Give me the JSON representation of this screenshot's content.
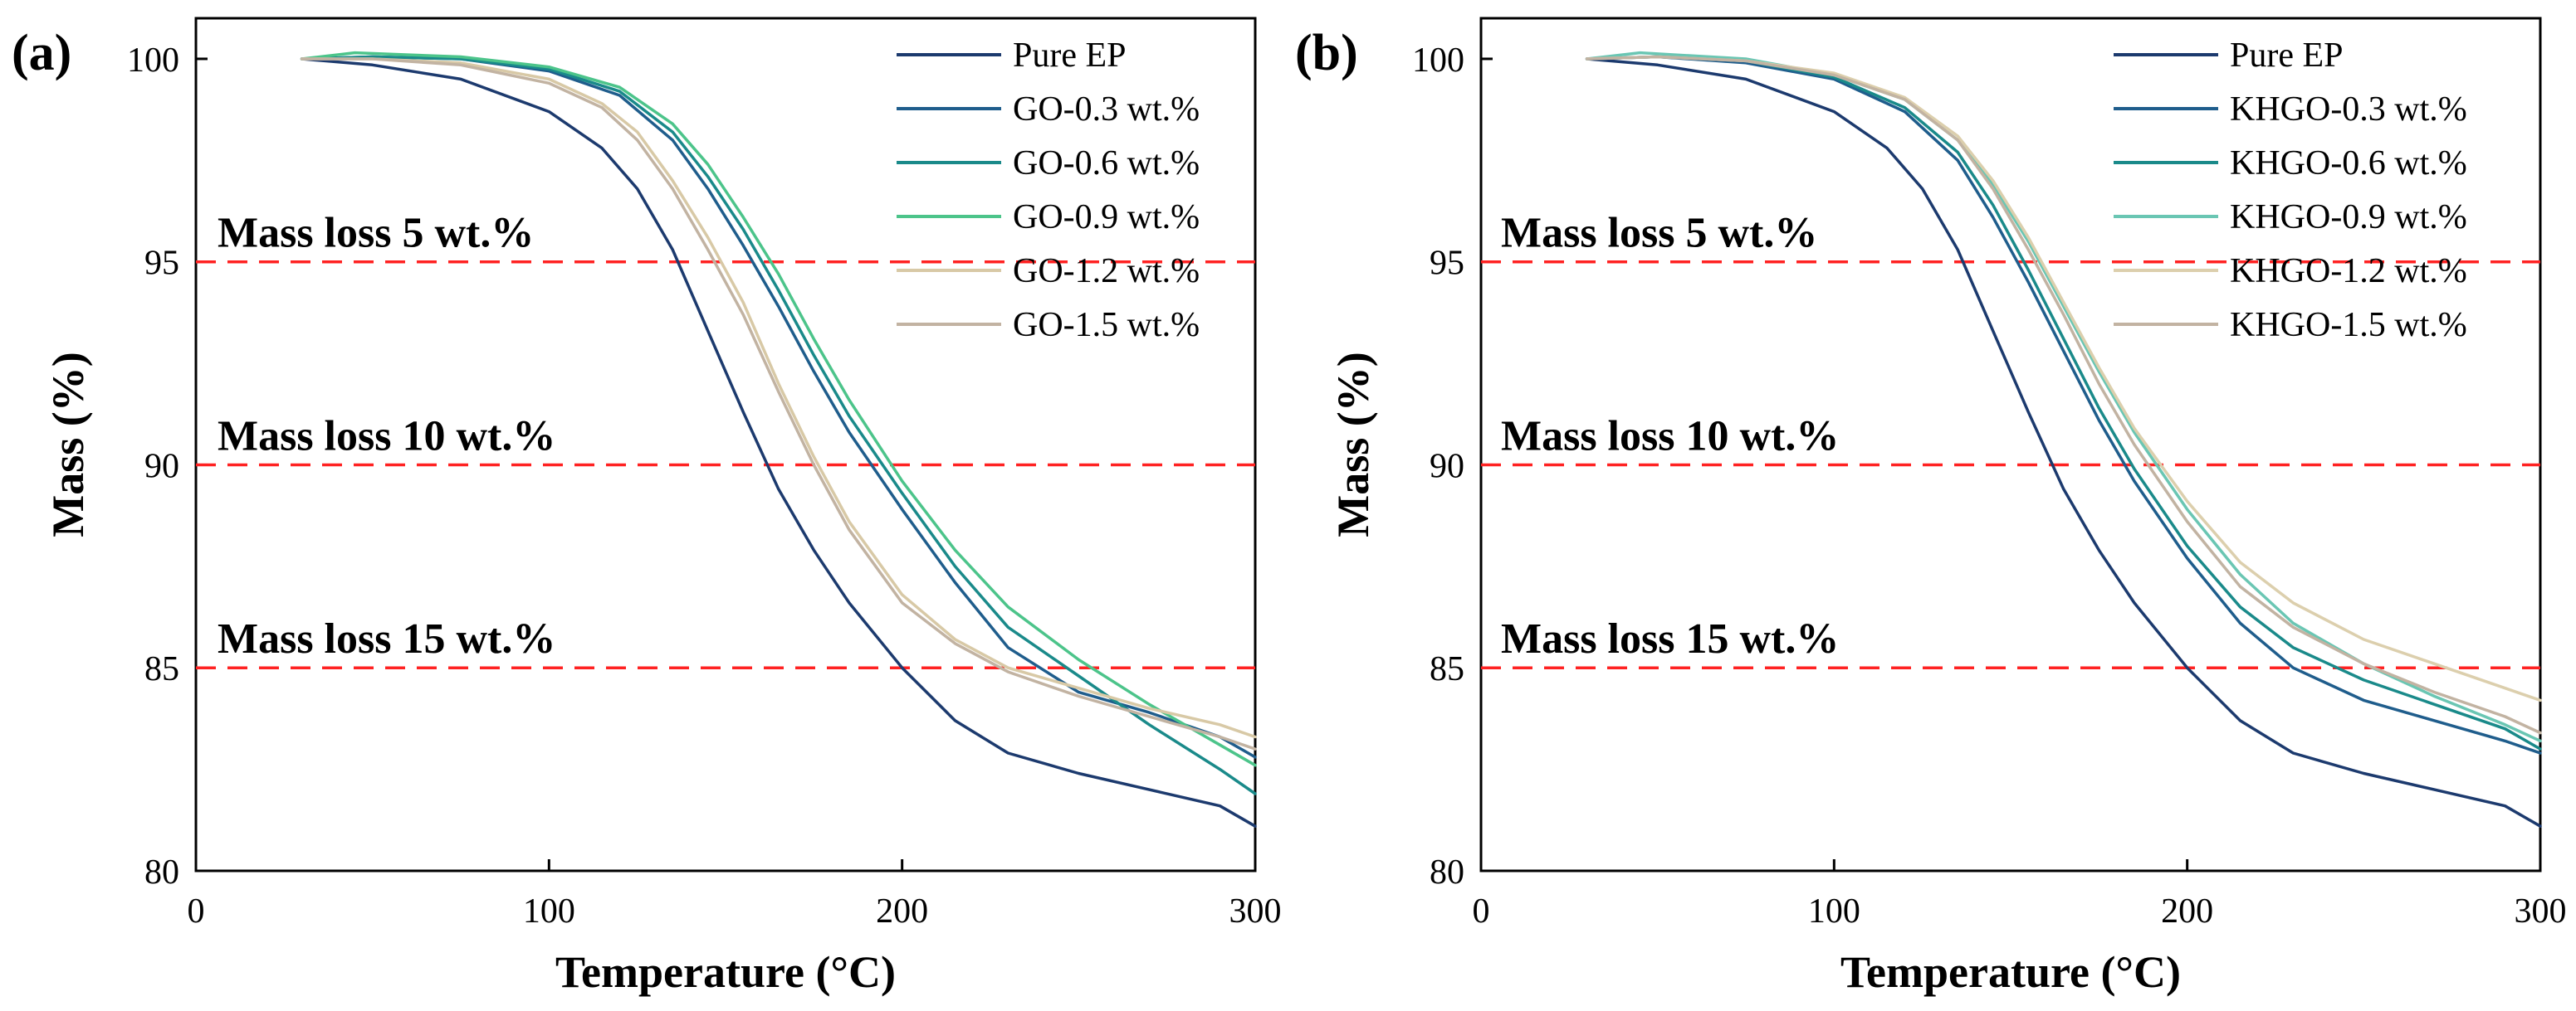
{
  "chart_data": [
    {
      "type": "line",
      "panel_label": "(a)",
      "xlabel": "Temperature (°C)",
      "ylabel": "Mass (%)",
      "xlim": [
        0,
        300
      ],
      "ylim": [
        80,
        101
      ],
      "xticks": [
        0,
        100,
        200,
        300
      ],
      "yticks": [
        80,
        85,
        90,
        95,
        100
      ],
      "legend_position": "top-right",
      "reference_lines": [
        {
          "y": 95,
          "color": "#ff2222",
          "style": "dashed",
          "label": "Mass loss 5 wt.%"
        },
        {
          "y": 90,
          "color": "#ff2222",
          "style": "dashed",
          "label": "Mass loss 10 wt.%"
        },
        {
          "y": 85,
          "color": "#ff2222",
          "style": "dashed",
          "label": "Mass loss 15 wt.%"
        }
      ],
      "series": [
        {
          "name": "Pure EP",
          "color": "#1c3a6e",
          "x": [
            30,
            50,
            75,
            100,
            115,
            125,
            135,
            145,
            155,
            165,
            175,
            185,
            200,
            215,
            230,
            250,
            270,
            290,
            300
          ],
          "y": [
            100.0,
            99.85,
            99.5,
            98.7,
            97.8,
            96.8,
            95.3,
            93.3,
            91.3,
            89.4,
            87.9,
            86.6,
            85.0,
            83.7,
            82.9,
            82.4,
            82.0,
            81.6,
            81.1
          ]
        },
        {
          "name": "GO-0.3 wt.%",
          "color": "#1f5d8c",
          "x": [
            30,
            50,
            75,
            100,
            120,
            135,
            145,
            155,
            165,
            175,
            185,
            200,
            215,
            230,
            250,
            270,
            290,
            300
          ],
          "y": [
            100.0,
            100.05,
            100.0,
            99.7,
            99.1,
            98.0,
            96.8,
            95.4,
            93.9,
            92.3,
            90.8,
            88.9,
            87.1,
            85.5,
            84.4,
            83.9,
            83.3,
            82.8
          ]
        },
        {
          "name": "GO-0.6 wt.%",
          "color": "#1a8a8a",
          "x": [
            30,
            50,
            75,
            100,
            120,
            135,
            145,
            155,
            165,
            175,
            185,
            200,
            215,
            230,
            250,
            270,
            290,
            300
          ],
          "y": [
            100.0,
            100.05,
            100.0,
            99.75,
            99.2,
            98.2,
            97.1,
            95.8,
            94.3,
            92.7,
            91.2,
            89.3,
            87.5,
            86.0,
            84.8,
            83.6,
            82.5,
            81.9
          ]
        },
        {
          "name": "GO-0.9 wt.%",
          "color": "#4cc48a",
          "x": [
            30,
            45,
            75,
            100,
            120,
            135,
            145,
            155,
            165,
            175,
            185,
            200,
            215,
            230,
            250,
            270,
            290,
            300
          ],
          "y": [
            100.0,
            100.15,
            100.05,
            99.8,
            99.3,
            98.4,
            97.4,
            96.1,
            94.7,
            93.1,
            91.6,
            89.6,
            87.9,
            86.5,
            85.2,
            84.1,
            83.1,
            82.6
          ]
        },
        {
          "name": "GO-1.2 wt.%",
          "color": "#d8c9a6",
          "x": [
            30,
            50,
            75,
            100,
            115,
            125,
            135,
            145,
            155,
            165,
            175,
            185,
            200,
            215,
            230,
            250,
            270,
            290,
            300
          ],
          "y": [
            100.0,
            100.0,
            99.9,
            99.5,
            98.9,
            98.2,
            97.0,
            95.6,
            94.0,
            92.0,
            90.2,
            88.6,
            86.8,
            85.7,
            85.0,
            84.5,
            84.0,
            83.6,
            83.3
          ]
        },
        {
          "name": "GO-1.5 wt.%",
          "color": "#c2b3a2",
          "x": [
            30,
            50,
            75,
            100,
            115,
            125,
            135,
            145,
            155,
            165,
            175,
            185,
            200,
            215,
            230,
            250,
            270,
            290,
            300
          ],
          "y": [
            100.0,
            100.0,
            99.85,
            99.4,
            98.8,
            98.0,
            96.8,
            95.3,
            93.7,
            91.8,
            90.0,
            88.4,
            86.6,
            85.6,
            84.9,
            84.3,
            83.8,
            83.3,
            83.0
          ]
        }
      ]
    },
    {
      "type": "line",
      "panel_label": "(b)",
      "xlabel": "Temperature (°C)",
      "ylabel": "Mass (%)",
      "xlim": [
        0,
        300
      ],
      "ylim": [
        80,
        101
      ],
      "xticks": [
        0,
        100,
        200,
        300
      ],
      "yticks": [
        80,
        85,
        90,
        95,
        100
      ],
      "legend_position": "top-right",
      "reference_lines": [
        {
          "y": 95,
          "color": "#ff2222",
          "style": "dashed",
          "label": "Mass loss 5 wt.%"
        },
        {
          "y": 90,
          "color": "#ff2222",
          "style": "dashed",
          "label": "Mass loss 10 wt.%"
        },
        {
          "y": 85,
          "color": "#ff2222",
          "style": "dashed",
          "label": "Mass loss 15 wt.%"
        }
      ],
      "series": [
        {
          "name": "Pure EP",
          "color": "#1c3a6e",
          "x": [
            30,
            50,
            75,
            100,
            115,
            125,
            135,
            145,
            155,
            165,
            175,
            185,
            200,
            215,
            230,
            250,
            270,
            290,
            300
          ],
          "y": [
            100.0,
            99.85,
            99.5,
            98.7,
            97.8,
            96.8,
            95.3,
            93.3,
            91.3,
            89.4,
            87.9,
            86.6,
            85.0,
            83.7,
            82.9,
            82.4,
            82.0,
            81.6,
            81.1
          ]
        },
        {
          "name": "KHGO-0.3 wt.%",
          "color": "#1f5d8c",
          "x": [
            30,
            50,
            75,
            100,
            120,
            135,
            145,
            155,
            165,
            175,
            185,
            200,
            215,
            230,
            250,
            270,
            290,
            300
          ],
          "y": [
            100.0,
            100.05,
            99.9,
            99.5,
            98.7,
            97.5,
            96.1,
            94.5,
            92.8,
            91.1,
            89.6,
            87.7,
            86.1,
            85.0,
            84.2,
            83.7,
            83.2,
            82.9
          ]
        },
        {
          "name": "KHGO-0.6 wt.%",
          "color": "#1a8a8a",
          "x": [
            30,
            50,
            75,
            100,
            120,
            135,
            145,
            155,
            165,
            175,
            185,
            200,
            215,
            230,
            250,
            270,
            290,
            300
          ],
          "y": [
            100.0,
            100.05,
            99.95,
            99.55,
            98.8,
            97.7,
            96.4,
            94.8,
            93.1,
            91.4,
            89.9,
            88.0,
            86.5,
            85.5,
            84.7,
            84.1,
            83.5,
            83.0
          ]
        },
        {
          "name": "KHGO-0.9 wt.%",
          "color": "#6ac6b3",
          "x": [
            30,
            45,
            75,
            100,
            120,
            135,
            145,
            155,
            165,
            175,
            185,
            200,
            215,
            230,
            250,
            270,
            290,
            300
          ],
          "y": [
            100.0,
            100.15,
            100.0,
            99.6,
            99.0,
            98.0,
            96.9,
            95.5,
            93.9,
            92.3,
            90.8,
            88.9,
            87.3,
            86.1,
            85.1,
            84.3,
            83.6,
            83.2
          ]
        },
        {
          "name": "KHGO-1.2 wt.%",
          "color": "#dccfad",
          "x": [
            30,
            50,
            75,
            100,
            120,
            135,
            145,
            155,
            165,
            175,
            185,
            200,
            215,
            230,
            250,
            270,
            290,
            300
          ],
          "y": [
            100.0,
            100.05,
            99.95,
            99.65,
            99.05,
            98.1,
            97.0,
            95.6,
            94.0,
            92.4,
            90.9,
            89.1,
            87.6,
            86.6,
            85.7,
            85.1,
            84.5,
            84.2
          ]
        },
        {
          "name": "KHGO-1.5 wt.%",
          "color": "#c2b3a2",
          "x": [
            30,
            50,
            75,
            100,
            120,
            135,
            145,
            155,
            165,
            175,
            185,
            200,
            215,
            230,
            250,
            270,
            290,
            300
          ],
          "y": [
            100.0,
            100.05,
            99.95,
            99.6,
            99.0,
            98.0,
            96.8,
            95.3,
            93.7,
            92.0,
            90.5,
            88.6,
            87.0,
            86.0,
            85.1,
            84.4,
            83.8,
            83.4
          ]
        }
      ]
    }
  ]
}
